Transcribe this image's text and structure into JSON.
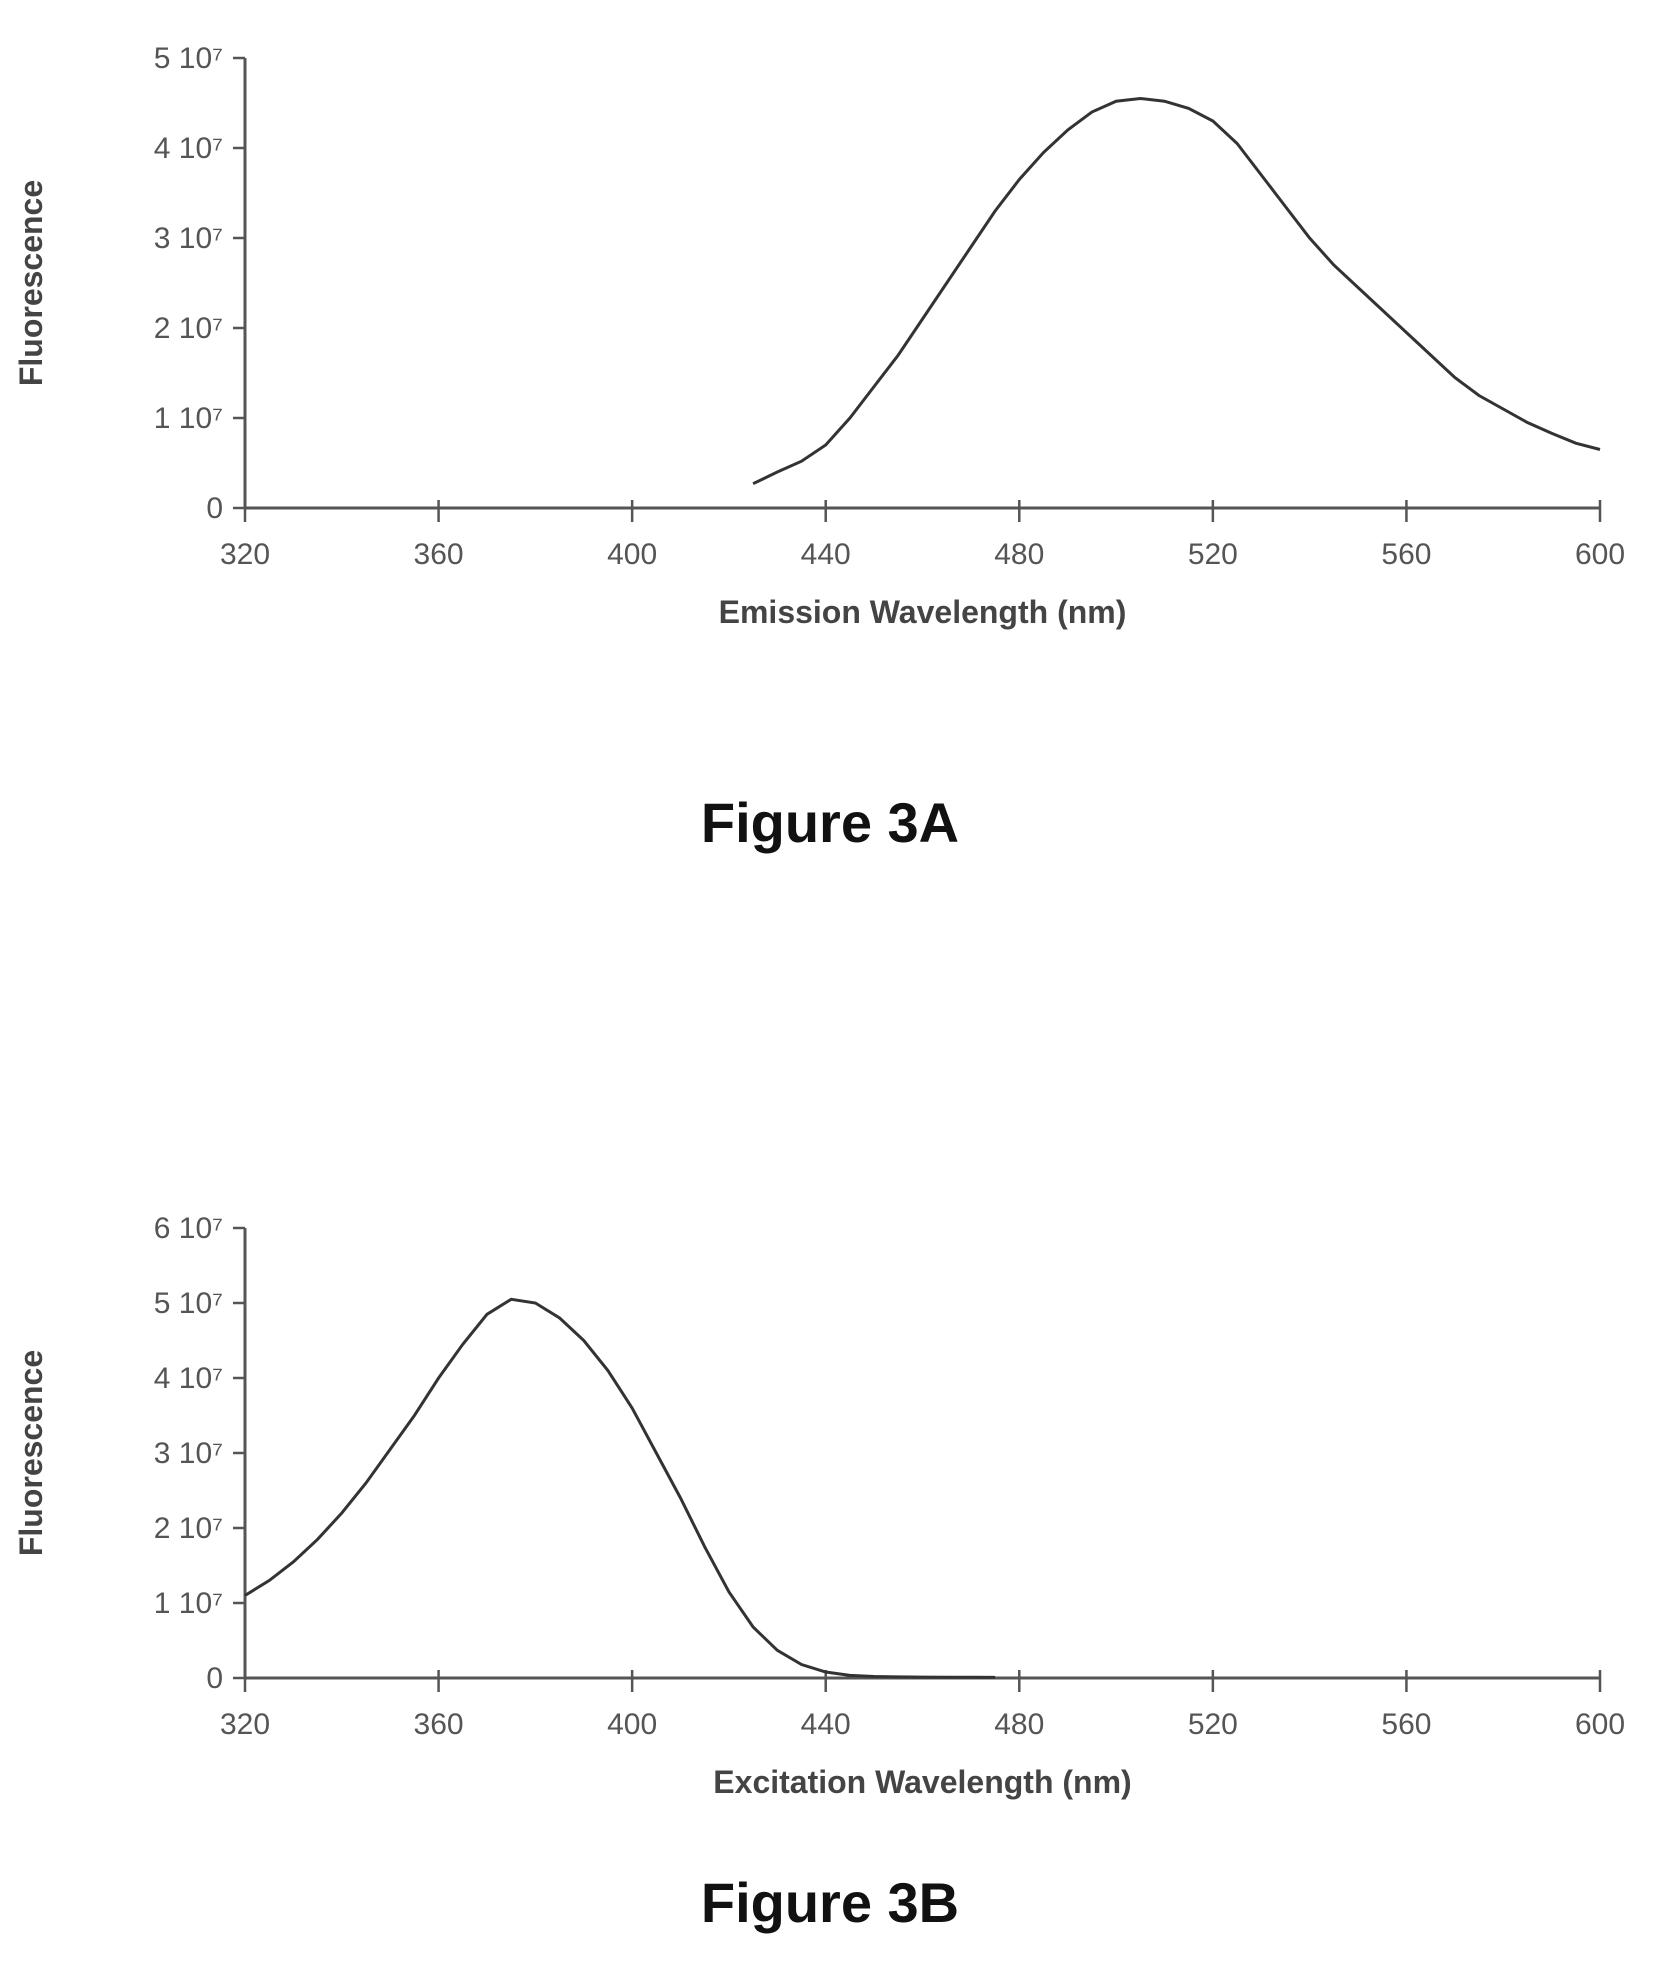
{
  "chart_data": [
    {
      "type": "line",
      "caption": "Figure 3A",
      "xlabel": "Emission Wavelength (nm)",
      "ylabel": "Fluorescence",
      "xlim": [
        320,
        600
      ],
      "ylim": [
        0,
        50000000
      ],
      "x_ticks": [
        "320",
        "360",
        "400",
        "440",
        "480",
        "520",
        "560",
        "600"
      ],
      "y_ticks": [
        "0",
        "1 10⁷",
        "2 10⁷",
        "3 10⁷",
        "4 10⁷",
        "5 10⁷"
      ],
      "grid": false,
      "series": [
        {
          "x": [
            425,
            430,
            435,
            440,
            445,
            450,
            455,
            460,
            465,
            470,
            475,
            480,
            485,
            490,
            495,
            500,
            505,
            510,
            515,
            520,
            525,
            530,
            535,
            540,
            545,
            550,
            555,
            560,
            565,
            570,
            575,
            580,
            585,
            590,
            595,
            600
          ],
          "y": [
            2700000,
            4000000,
            5200000,
            7000000,
            10000000,
            13500000,
            17000000,
            21000000,
            25000000,
            29000000,
            33000000,
            36500000,
            39500000,
            42000000,
            44000000,
            45200000,
            45500000,
            45200000,
            44400000,
            43000000,
            40500000,
            37000000,
            33500000,
            30000000,
            27000000,
            24500000,
            22000000,
            19500000,
            17000000,
            14500000,
            12500000,
            11000000,
            9500000,
            8300000,
            7200000,
            6500000
          ]
        }
      ]
    },
    {
      "type": "line",
      "caption": "Figure 3B",
      "xlabel": "Excitation Wavelength (nm)",
      "ylabel": "Fluorescence",
      "xlim": [
        320,
        600
      ],
      "ylim": [
        0,
        60000000
      ],
      "x_ticks": [
        "320",
        "360",
        "400",
        "440",
        "480",
        "520",
        "560",
        "600"
      ],
      "y_ticks": [
        "0",
        "1 10⁷",
        "2 10⁷",
        "3 10⁷",
        "4 10⁷",
        "5 10⁷",
        "6 10⁷"
      ],
      "grid": false,
      "series": [
        {
          "x": [
            320,
            325,
            330,
            335,
            340,
            345,
            350,
            355,
            360,
            365,
            370,
            375,
            380,
            385,
            390,
            395,
            400,
            405,
            410,
            415,
            420,
            425,
            430,
            435,
            440,
            445,
            450,
            455,
            460,
            465,
            470,
            475
          ],
          "y": [
            11000000,
            13000000,
            15500000,
            18500000,
            22000000,
            26000000,
            30500000,
            35000000,
            40000000,
            44500000,
            48500000,
            50500000,
            50000000,
            48000000,
            45000000,
            41000000,
            36000000,
            30000000,
            24000000,
            17500000,
            11500000,
            6800000,
            3700000,
            1800000,
            800000,
            350000,
            200000,
            150000,
            120000,
            100000,
            90000,
            80000
          ]
        }
      ]
    }
  ]
}
